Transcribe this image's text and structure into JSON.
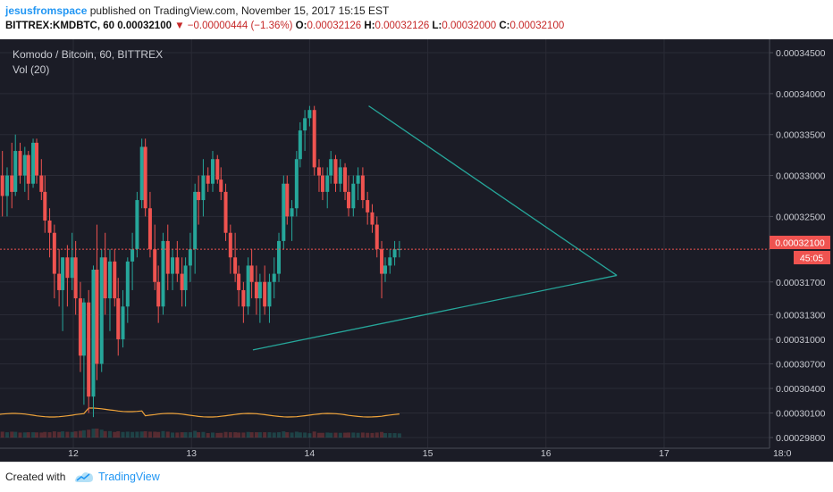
{
  "header": {
    "author": "jesusfromspace",
    "published_text": " published on TradingView.com, November 15, 2017 15:15 EST",
    "symbol": "BITTREX:KMDBTC, 60",
    "last": "0.00032100",
    "change": "−0.00000444 (−1.36%)",
    "o_label": "O:",
    "o_value": "0.00032126",
    "h_label": "H:",
    "h_value": "0.00032126",
    "l_label": "L:",
    "l_value": "0.00032000",
    "c_label": "C:",
    "c_value": "0.00032100"
  },
  "legend": {
    "title": "Komodo / Bitcoin, 60, BITTREX",
    "volume": "Vol (20)"
  },
  "price_badge": "0.00032100",
  "countdown_badge": "45:05",
  "footer": {
    "created": "Created with",
    "brand": "TradingView"
  },
  "colors": {
    "up": "#26a69a",
    "down": "#ef5350",
    "triangle": "#26a69a",
    "volume_ma": "#f0a43a",
    "background": "#1b1c26"
  },
  "icons": [
    "down-arrow-icon",
    "tradingview-logo-icon"
  ],
  "chart_data": {
    "type": "candlestick",
    "title": "Komodo / Bitcoin, 60, BITTREX",
    "x_tick_labels": [
      "12",
      "13",
      "14",
      "15",
      "16",
      "17",
      "18:0"
    ],
    "y_tick_labels": [
      "0.00034500",
      "0.00034000",
      "0.00033500",
      "0.00033000",
      "0.00032500",
      "0.00032100",
      "0.00031700",
      "0.00031300",
      "0.00031000",
      "0.00030700",
      "0.00030400",
      "0.00030100",
      "0.00029800"
    ],
    "ylim": [
      0.000296,
      0.000347
    ],
    "last_price": 0.000321,
    "candles": [
      {
        "t": 11.33,
        "o": 0.0003357,
        "h": 0.0003392,
        "l": 0.000331,
        "c": 0.000332
      },
      {
        "t": 11.36,
        "o": 0.000339,
        "h": 0.0003405,
        "l": 0.000328,
        "c": 0.00033
      },
      {
        "t": 11.4,
        "o": 0.00033,
        "h": 0.000333,
        "l": 0.000325,
        "c": 0.0003275
      },
      {
        "t": 11.44,
        "o": 0.0003275,
        "h": 0.000331,
        "l": 0.000325,
        "c": 0.00033
      },
      {
        "t": 11.48,
        "o": 0.00033,
        "h": 0.000334,
        "l": 0.000326,
        "c": 0.000328
      },
      {
        "t": 11.51,
        "o": 0.000328,
        "h": 0.000335,
        "l": 0.0003275,
        "c": 0.000333
      },
      {
        "t": 11.55,
        "o": 0.000333,
        "h": 0.000334,
        "l": 0.000329,
        "c": 0.00033
      },
      {
        "t": 11.59,
        "o": 0.00033,
        "h": 0.0003335,
        "l": 0.000328,
        "c": 0.0003325
      },
      {
        "t": 11.62,
        "o": 0.0003325,
        "h": 0.000333,
        "l": 0.000327,
        "c": 0.000329
      },
      {
        "t": 11.66,
        "o": 0.000329,
        "h": 0.0003345,
        "l": 0.0003285,
        "c": 0.000334
      },
      {
        "t": 11.69,
        "o": 0.000334,
        "h": 0.0003345,
        "l": 0.000329,
        "c": 0.00033
      },
      {
        "t": 11.73,
        "o": 0.00033,
        "h": 0.000332,
        "l": 0.000327,
        "c": 0.000328
      },
      {
        "t": 11.76,
        "o": 0.000328,
        "h": 0.00033,
        "l": 0.000323,
        "c": 0.0003245
      },
      {
        "t": 11.8,
        "o": 0.0003245,
        "h": 0.000326,
        "l": 0.00032,
        "c": 0.000323
      },
      {
        "t": 11.84,
        "o": 0.000323,
        "h": 0.000324,
        "l": 0.000315,
        "c": 0.000318
      },
      {
        "t": 11.88,
        "o": 0.000318,
        "h": 0.000321,
        "l": 0.000314,
        "c": 0.000316
      },
      {
        "t": 11.91,
        "o": 0.000316,
        "h": 0.00032,
        "l": 0.000311,
        "c": 0.00032
      },
      {
        "t": 11.95,
        "o": 0.00032,
        "h": 0.0003215,
        "l": 0.000314,
        "c": 0.0003175
      },
      {
        "t": 11.99,
        "o": 0.0003175,
        "h": 0.000323,
        "l": 0.000316,
        "c": 0.00032
      },
      {
        "t": 12.02,
        "o": 0.00032,
        "h": 0.000322,
        "l": 0.000313,
        "c": 0.000315
      },
      {
        "t": 12.06,
        "o": 0.000315,
        "h": 0.000317,
        "l": 0.000306,
        "c": 0.000308
      },
      {
        "t": 12.09,
        "o": 0.000308,
        "h": 0.000315,
        "l": 0.000302,
        "c": 0.0003145
      },
      {
        "t": 12.13,
        "o": 0.0003145,
        "h": 0.000316,
        "l": 0.000301,
        "c": 0.000303
      },
      {
        "t": 12.17,
        "o": 0.000303,
        "h": 0.000319,
        "l": 0.0003005,
        "c": 0.0003185
      },
      {
        "t": 12.2,
        "o": 0.0003185,
        "h": 0.000324,
        "l": 0.000305,
        "c": 0.000307
      },
      {
        "t": 12.24,
        "o": 0.000307,
        "h": 0.000321,
        "l": 0.000306,
        "c": 0.00032
      },
      {
        "t": 12.27,
        "o": 0.00032,
        "h": 0.000323,
        "l": 0.000313,
        "c": 0.000315
      },
      {
        "t": 12.31,
        "o": 0.000315,
        "h": 0.000321,
        "l": 0.000311,
        "c": 0.0003195
      },
      {
        "t": 12.35,
        "o": 0.0003195,
        "h": 0.000321,
        "l": 0.000314,
        "c": 0.000315
      },
      {
        "t": 12.38,
        "o": 0.000315,
        "h": 0.0003175,
        "l": 0.000308,
        "c": 0.00031
      },
      {
        "t": 12.42,
        "o": 0.00031,
        "h": 0.000316,
        "l": 0.000309,
        "c": 0.000314
      },
      {
        "t": 12.46,
        "o": 0.000314,
        "h": 0.00032,
        "l": 0.000312,
        "c": 0.0003195
      },
      {
        "t": 12.5,
        "o": 0.0003195,
        "h": 0.000323,
        "l": 0.000316,
        "c": 0.000321
      },
      {
        "t": 12.54,
        "o": 0.000321,
        "h": 0.000328,
        "l": 0.00032,
        "c": 0.000327
      },
      {
        "t": 12.58,
        "o": 0.000327,
        "h": 0.0003345,
        "l": 0.000326,
        "c": 0.0003335
      },
      {
        "t": 12.61,
        "o": 0.0003335,
        "h": 0.0003345,
        "l": 0.000325,
        "c": 0.000326
      },
      {
        "t": 12.65,
        "o": 0.000326,
        "h": 0.000328,
        "l": 0.00032,
        "c": 0.000321
      },
      {
        "t": 12.69,
        "o": 0.000321,
        "h": 0.000324,
        "l": 0.000316,
        "c": 0.000317
      },
      {
        "t": 12.72,
        "o": 0.000317,
        "h": 0.000319,
        "l": 0.000312,
        "c": 0.000314
      },
      {
        "t": 12.76,
        "o": 0.000314,
        "h": 0.000323,
        "l": 0.000313,
        "c": 0.000322
      },
      {
        "t": 12.8,
        "o": 0.000322,
        "h": 0.000324,
        "l": 0.000316,
        "c": 0.000318
      },
      {
        "t": 12.84,
        "o": 0.000318,
        "h": 0.000321,
        "l": 0.000316,
        "c": 0.00032
      },
      {
        "t": 12.88,
        "o": 0.00032,
        "h": 0.000322,
        "l": 0.000317,
        "c": 0.000318
      },
      {
        "t": 12.92,
        "o": 0.000318,
        "h": 0.00032,
        "l": 0.000314,
        "c": 0.000316
      },
      {
        "t": 12.95,
        "o": 0.000316,
        "h": 0.00032,
        "l": 0.000314,
        "c": 0.000319
      },
      {
        "t": 12.99,
        "o": 0.000319,
        "h": 0.000323,
        "l": 0.000317,
        "c": 0.000321
      },
      {
        "t": 13.03,
        "o": 0.000321,
        "h": 0.000329,
        "l": 0.000318,
        "c": 0.000328
      },
      {
        "t": 13.06,
        "o": 0.000328,
        "h": 0.00033,
        "l": 0.000324,
        "c": 0.000327
      },
      {
        "t": 13.1,
        "o": 0.000327,
        "h": 0.000332,
        "l": 0.000325,
        "c": 0.00033
      },
      {
        "t": 13.14,
        "o": 0.00033,
        "h": 0.000331,
        "l": 0.000328,
        "c": 0.000329
      },
      {
        "t": 13.18,
        "o": 0.000329,
        "h": 0.000333,
        "l": 0.000328,
        "c": 0.000332
      },
      {
        "t": 13.22,
        "o": 0.000332,
        "h": 0.0003325,
        "l": 0.000329,
        "c": 0.0003295
      },
      {
        "t": 13.25,
        "o": 0.0003295,
        "h": 0.000331,
        "l": 0.000327,
        "c": 0.000328
      },
      {
        "t": 13.29,
        "o": 0.000328,
        "h": 0.000329,
        "l": 0.000322,
        "c": 0.000323
      },
      {
        "t": 13.33,
        "o": 0.000323,
        "h": 0.000324,
        "l": 0.000318,
        "c": 0.00032
      },
      {
        "t": 13.37,
        "o": 0.00032,
        "h": 0.000323,
        "l": 0.000317,
        "c": 0.000318
      },
      {
        "t": 13.4,
        "o": 0.000318,
        "h": 0.000319,
        "l": 0.000314,
        "c": 0.000316
      },
      {
        "t": 13.44,
        "o": 0.000316,
        "h": 0.000317,
        "l": 0.000312,
        "c": 0.000314
      },
      {
        "t": 13.48,
        "o": 0.000314,
        "h": 0.00032,
        "l": 0.000313,
        "c": 0.000319
      },
      {
        "t": 13.51,
        "o": 0.000319,
        "h": 0.000321,
        "l": 0.000315,
        "c": 0.000317
      },
      {
        "t": 13.55,
        "o": 0.000317,
        "h": 0.000319,
        "l": 0.000313,
        "c": 0.000315
      },
      {
        "t": 13.58,
        "o": 0.000315,
        "h": 0.000318,
        "l": 0.000312,
        "c": 0.000317
      },
      {
        "t": 13.62,
        "o": 0.000317,
        "h": 0.000319,
        "l": 0.000313,
        "c": 0.000314
      },
      {
        "t": 13.66,
        "o": 0.000314,
        "h": 0.000318,
        "l": 0.000312,
        "c": 0.000317
      },
      {
        "t": 13.7,
        "o": 0.000317,
        "h": 0.00032,
        "l": 0.000315,
        "c": 0.000318
      },
      {
        "t": 13.74,
        "o": 0.000318,
        "h": 0.000323,
        "l": 0.000317,
        "c": 0.000322
      },
      {
        "t": 13.78,
        "o": 0.000322,
        "h": 0.00033,
        "l": 0.000321,
        "c": 0.000329
      },
      {
        "t": 13.81,
        "o": 0.000329,
        "h": 0.00033,
        "l": 0.000324,
        "c": 0.000325
      },
      {
        "t": 13.85,
        "o": 0.000325,
        "h": 0.000327,
        "l": 0.000322,
        "c": 0.000326
      },
      {
        "t": 13.89,
        "o": 0.000326,
        "h": 0.000333,
        "l": 0.000325,
        "c": 0.000332
      },
      {
        "t": 13.92,
        "o": 0.000332,
        "h": 0.0003365,
        "l": 0.000331,
        "c": 0.0003355
      },
      {
        "t": 13.96,
        "o": 0.0003355,
        "h": 0.000338,
        "l": 0.000333,
        "c": 0.000337
      },
      {
        "t": 14.0,
        "o": 0.000337,
        "h": 0.0003385,
        "l": 0.000336,
        "c": 0.000338
      },
      {
        "t": 14.04,
        "o": 0.000338,
        "h": 0.0003385,
        "l": 0.00033,
        "c": 0.000331
      },
      {
        "t": 14.08,
        "o": 0.000331,
        "h": 0.000332,
        "l": 0.000328,
        "c": 0.00033
      },
      {
        "t": 14.11,
        "o": 0.00033,
        "h": 0.000331,
        "l": 0.000327,
        "c": 0.000328
      },
      {
        "t": 14.15,
        "o": 0.000328,
        "h": 0.000331,
        "l": 0.000326,
        "c": 0.00033
      },
      {
        "t": 14.18,
        "o": 0.00033,
        "h": 0.000333,
        "l": 0.000329,
        "c": 0.000332
      },
      {
        "t": 14.22,
        "o": 0.000332,
        "h": 0.0003325,
        "l": 0.000328,
        "c": 0.000329
      },
      {
        "t": 14.26,
        "o": 0.000329,
        "h": 0.000332,
        "l": 0.000328,
        "c": 0.000331
      },
      {
        "t": 14.3,
        "o": 0.000331,
        "h": 0.0003315,
        "l": 0.000327,
        "c": 0.000328
      },
      {
        "t": 14.33,
        "o": 0.000328,
        "h": 0.00033,
        "l": 0.000325,
        "c": 0.000326
      },
      {
        "t": 14.37,
        "o": 0.000326,
        "h": 0.00033,
        "l": 0.000325,
        "c": 0.000329
      },
      {
        "t": 14.41,
        "o": 0.000329,
        "h": 0.000331,
        "l": 0.000327,
        "c": 0.00033
      },
      {
        "t": 14.45,
        "o": 0.00033,
        "h": 0.000331,
        "l": 0.000326,
        "c": 0.000327
      },
      {
        "t": 14.49,
        "o": 0.000327,
        "h": 0.000328,
        "l": 0.000324,
        "c": 0.0003255
      },
      {
        "t": 14.53,
        "o": 0.0003255,
        "h": 0.0003265,
        "l": 0.000323,
        "c": 0.000324
      },
      {
        "t": 14.57,
        "o": 0.000324,
        "h": 0.000325,
        "l": 0.00032,
        "c": 0.000321
      },
      {
        "t": 14.61,
        "o": 0.000321,
        "h": 0.000322,
        "l": 0.000315,
        "c": 0.000318
      },
      {
        "t": 14.64,
        "o": 0.000318,
        "h": 0.00032,
        "l": 0.000317,
        "c": 0.000319
      },
      {
        "t": 14.68,
        "o": 0.000319,
        "h": 0.000321,
        "l": 0.000318,
        "c": 0.00032
      },
      {
        "t": 14.72,
        "o": 0.00032,
        "h": 0.000322,
        "l": 0.000319,
        "c": 0.000321
      },
      {
        "t": 14.76,
        "o": 0.000321,
        "h": 0.000322,
        "l": 0.00032,
        "c": 0.000321
      }
    ],
    "volume_ma_note": "Vol (20)",
    "trendlines": [
      {
        "name": "upper",
        "from": {
          "t": 14.5,
          "p": 0.0003385
        },
        "to": {
          "t": 16.6,
          "p": 0.0003178
        }
      },
      {
        "name": "lower",
        "from": {
          "t": 13.52,
          "p": 0.0003087
        },
        "to": {
          "t": 16.6,
          "p": 0.0003178
        }
      }
    ]
  }
}
